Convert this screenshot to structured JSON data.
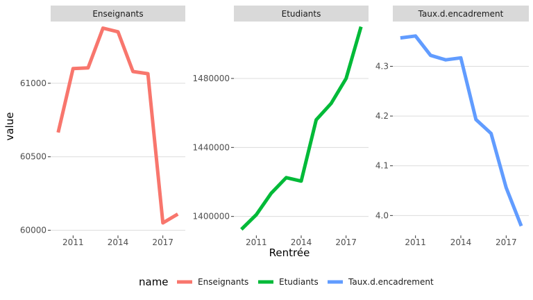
{
  "chart_data": {
    "type": "line",
    "xlabel": "Rentrée",
    "ylabel": "value",
    "x_ticks": [
      2011,
      2014,
      2017
    ],
    "legend": {
      "title": "name",
      "position": "bottom",
      "entries": [
        "Enseignants",
        "Etudiants",
        "Taux.d.encadrement"
      ]
    },
    "grid": true,
    "panels": [
      {
        "name": "Enseignants",
        "color": "#F8766D",
        "x": [
          2010,
          2011,
          2012,
          2013,
          2014,
          2015,
          2016,
          2017,
          2018
        ],
        "values": [
          60665,
          61100,
          61105,
          61375,
          61350,
          61080,
          61065,
          60050,
          60110
        ],
        "ylim": [
          59965,
          61420
        ],
        "y_ticks": [
          60000,
          60500,
          61000
        ],
        "y_tick_labels": [
          "60000",
          "60500",
          "61000"
        ]
      },
      {
        "name": "Etudiants",
        "color": "#00BA38",
        "x": [
          2010,
          2011,
          2012,
          2013,
          2014,
          2015,
          2016,
          2017,
          2018
        ],
        "values": [
          1392500,
          1401000,
          1413500,
          1422500,
          1420500,
          1456000,
          1465500,
          1480000,
          1510000
        ],
        "ylim": [
          1389000,
          1513000
        ],
        "y_ticks": [
          1400000,
          1440000,
          1480000
        ],
        "y_tick_labels": [
          "1400000",
          "1440000",
          "1480000"
        ]
      },
      {
        "name": "Taux.d.encadrement",
        "color": "#619CFF",
        "x": [
          2010,
          2011,
          2012,
          2013,
          2014,
          2015,
          2016,
          2017,
          2018
        ],
        "values": [
          4.357,
          4.361,
          4.322,
          4.313,
          4.317,
          4.193,
          4.165,
          4.056,
          3.979
        ],
        "ylim": [
          3.96,
          4.39
        ],
        "y_ticks": [
          4.0,
          4.1,
          4.2,
          4.3
        ],
        "y_tick_labels": [
          "4.0",
          "4.1",
          "4.2",
          "4.3"
        ]
      }
    ]
  }
}
